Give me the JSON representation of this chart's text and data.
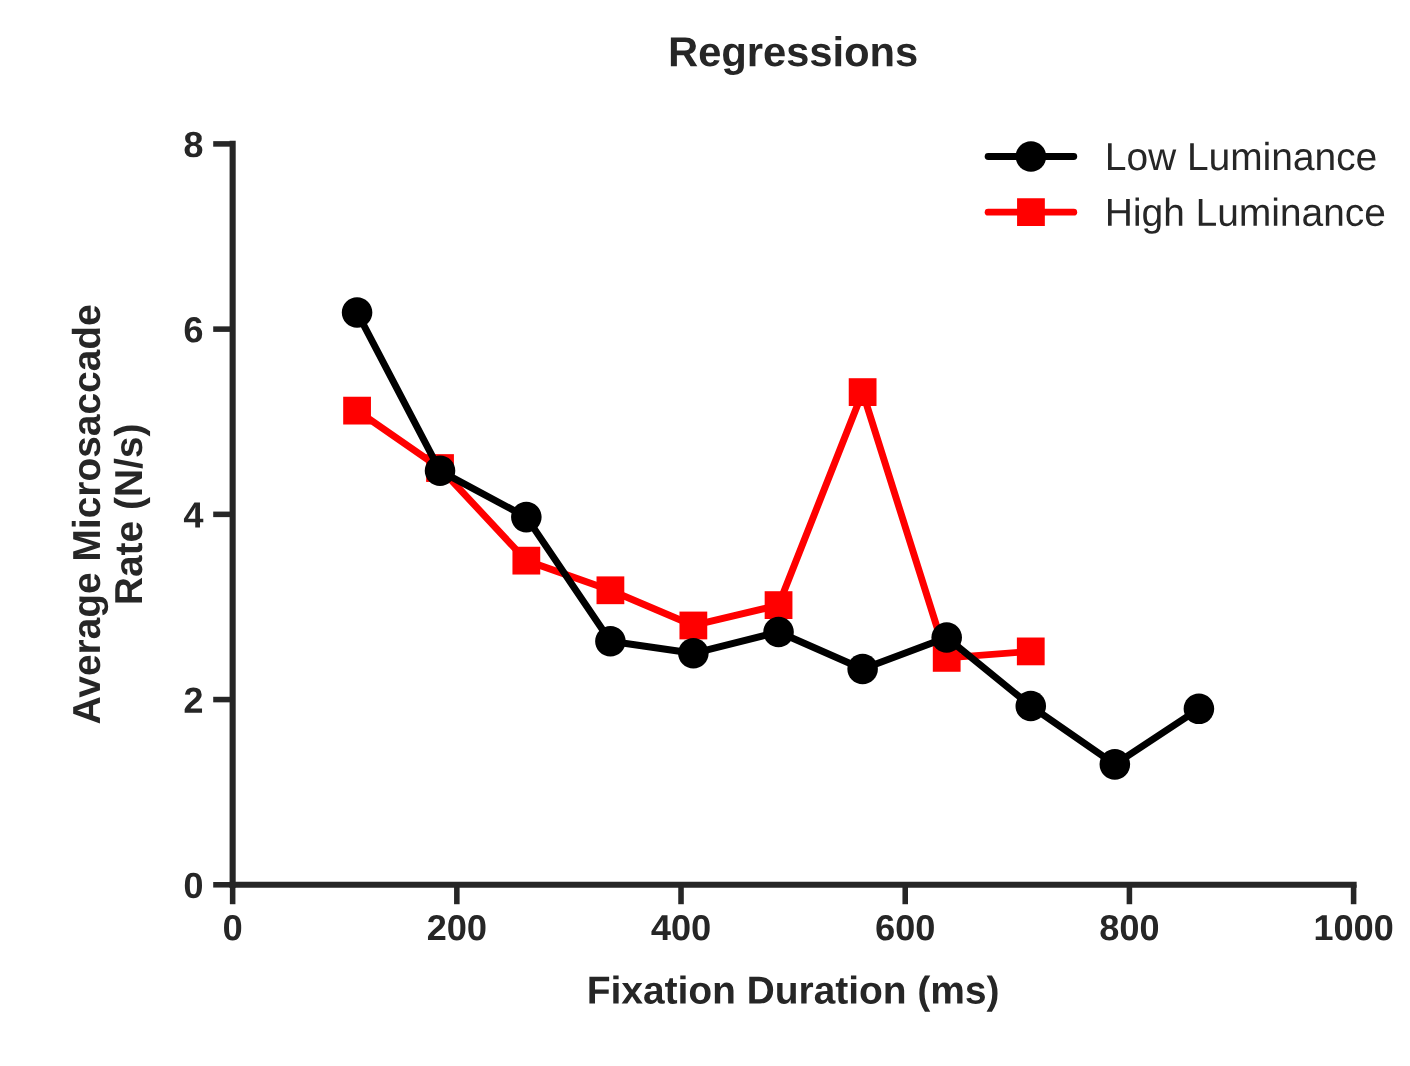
{
  "chart_data": {
    "type": "line",
    "title": "Regressions",
    "xlabel": "Fixation Duration (ms)",
    "ylabel": "Average Microsaccade\nRate (N/s)",
    "xlim": [
      0,
      1000
    ],
    "xticks": [
      0,
      200,
      400,
      600,
      800,
      1000
    ],
    "ylim": [
      0,
      8
    ],
    "yticks": [
      0,
      2,
      4,
      6,
      8
    ],
    "grid": false,
    "legend": "top right",
    "line_style": "solid",
    "series": [
      {
        "name": "Low Luminance",
        "color": "#000000",
        "marker": "circle",
        "x": [
          111,
          185,
          262,
          337,
          411,
          487,
          562,
          637,
          712,
          787,
          862
        ],
        "values": [
          6.18,
          4.47,
          3.97,
          2.63,
          2.5,
          2.73,
          2.33,
          2.67,
          1.93,
          1.3,
          1.9
        ]
      },
      {
        "name": "High Luminance",
        "color": "#ff0000",
        "marker": "square",
        "x": [
          111,
          185,
          262,
          337,
          411,
          487,
          562,
          637,
          712
        ],
        "values": [
          5.12,
          4.5,
          3.5,
          3.18,
          2.8,
          3.02,
          5.32,
          2.45,
          2.52
        ]
      }
    ]
  }
}
